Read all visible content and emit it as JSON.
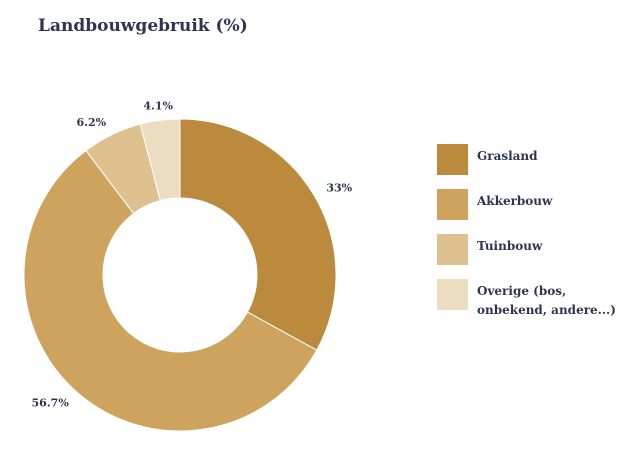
{
  "chart_data": {
    "type": "pie",
    "title": "Landbouwgebruik (%)",
    "donut": true,
    "categories": [
      "Grasland",
      "Akkerbouw",
      "Tuinbouw",
      "Overige (bos, onbekend, andere...)"
    ],
    "values": [
      33,
      56.7,
      6.2,
      4.1
    ],
    "value_labels": [
      "33%",
      "56.7%",
      "6.2%",
      "4.1%"
    ],
    "colors": [
      "#bb8a3c",
      "#cea35e",
      "#dfc190",
      "#ecdcc0"
    ],
    "legend_position": "right"
  }
}
